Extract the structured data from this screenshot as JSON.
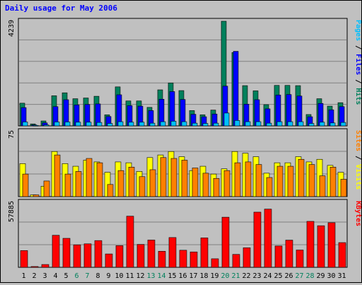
{
  "chart_data": {
    "type": "bar",
    "title": "Daily usage for May 2006",
    "categories": [
      "1",
      "2",
      "3",
      "4",
      "5",
      "6",
      "7",
      "8",
      "9",
      "10",
      "11",
      "12",
      "13",
      "14",
      "15",
      "16",
      "17",
      "18",
      "19",
      "20",
      "21",
      "22",
      "23",
      "24",
      "25",
      "26",
      "27",
      "28",
      "29",
      "30",
      "31"
    ],
    "weekend_days": [
      "6",
      "7",
      "13",
      "14",
      "20",
      "21",
      "27",
      "28"
    ],
    "colors": {
      "title": "#0000ff",
      "hits": "#00805c",
      "files": "#0000ff",
      "pages": "#00c0ff",
      "visits": "#ffff00",
      "sites": "#ff8000",
      "kbytes": "#ff0000",
      "weekend_label": "#00805c",
      "weekday_label": "#000000",
      "plot_bg": "#c0c0c0",
      "grid": "#808080"
    },
    "panels": [
      {
        "id": "hits-files-pages",
        "ymax": 4239,
        "ymax_label": "4239",
        "axis_label_parts": [
          {
            "text": "Pages",
            "color_key": "pages"
          },
          {
            "text": " / ",
            "color_key": "weekday_label"
          },
          {
            "text": "Files",
            "color_key": "files"
          },
          {
            "text": " / ",
            "color_key": "weekday_label"
          },
          {
            "text": "Hits",
            "color_key": "hits"
          }
        ],
        "series": [
          {
            "name": "Hits",
            "color_key": "hits",
            "values": [
              920,
              80,
              200,
              1220,
              1340,
              1100,
              1130,
              1200,
              450,
              1580,
              1010,
              1010,
              750,
              1460,
              1740,
              1430,
              620,
              450,
              640,
              4239,
              2970,
              1630,
              1420,
              860,
              1640,
              1640,
              1630,
              460,
              1100,
              800,
              940
            ]
          },
          {
            "name": "Files",
            "color_key": "files",
            "values": [
              740,
              40,
              120,
              780,
              1060,
              850,
              870,
              890,
              380,
              1260,
              820,
              800,
              620,
              1080,
              1390,
              1070,
              470,
              370,
              480,
              1610,
              3020,
              880,
              1060,
              690,
              1250,
              1270,
              1210,
              370,
              910,
              650,
              780
            ]
          },
          {
            "name": "Pages",
            "color_key": "pages",
            "values": [
              160,
              20,
              40,
              160,
              160,
              150,
              150,
              140,
              100,
              170,
              150,
              150,
              110,
              170,
              190,
              170,
              110,
              100,
              110,
              520,
              220,
              170,
              170,
              110,
              170,
              170,
              170,
              100,
              150,
              120,
              140
            ]
          }
        ]
      },
      {
        "id": "visits-sites",
        "ymax": 75,
        "ymax_label": "75",
        "axis_label_parts": [
          {
            "text": "Sites",
            "color_key": "sites"
          },
          {
            "text": " / ",
            "color_key": "weekday_label"
          },
          {
            "text": "Visits",
            "color_key": "visits"
          }
        ],
        "series": [
          {
            "name": "Visits",
            "color_key": "visits",
            "values": [
              38,
              2,
              12,
              52,
              38,
              35,
              42,
              40,
              28,
              40,
              39,
              29,
              45,
              48,
              52,
              46,
              30,
              35,
              26,
              32,
              52,
              50,
              46,
              27,
              39,
              39,
              46,
              40,
              43,
              36,
              28
            ]
          },
          {
            "name": "Sites",
            "color_key": "sites",
            "values": [
              26,
              2,
              18,
              48,
              26,
              29,
              44,
              39,
              14,
              30,
              34,
              23,
              31,
              45,
              44,
              42,
              33,
              27,
              21,
              30,
              39,
              40,
              37,
              22,
              35,
              35,
              43,
              37,
              24,
              34,
              20
            ]
          }
        ]
      },
      {
        "id": "kbytes",
        "ymax": 57885,
        "ymax_label": "57885",
        "axis_label_parts": [
          {
            "text": "KBytes",
            "color_key": "kbytes"
          }
        ],
        "series": [
          {
            "name": "KBytes",
            "color_key": "kbytes",
            "values": [
              14900,
              700,
              2500,
              28500,
              25800,
              20000,
              20900,
              23800,
              11900,
              19300,
              45500,
              20400,
              24300,
              14300,
              26500,
              15200,
              13700,
              26200,
              7600,
              44600,
              11500,
              17400,
              49100,
              51800,
              19000,
              24200,
              15400,
              40900,
              37000,
              39700,
              22000
            ]
          }
        ]
      }
    ]
  }
}
